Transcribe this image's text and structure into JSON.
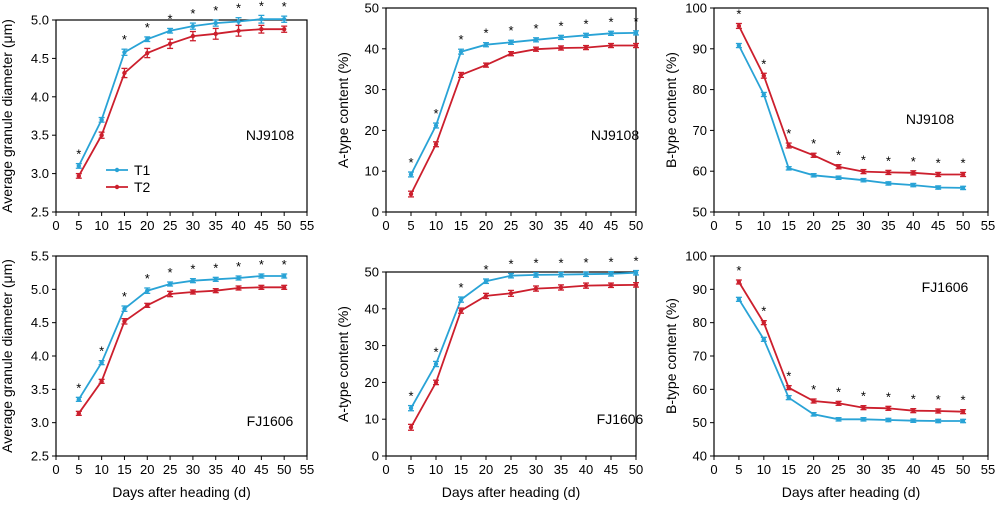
{
  "chart_data": [
    {
      "type": "line",
      "xlabel": "",
      "ylabel": "Average granule diameter (μm)",
      "x": [
        5,
        10,
        15,
        20,
        25,
        30,
        35,
        40,
        45,
        50
      ],
      "xlim": [
        0,
        55
      ],
      "xticks": [
        "0",
        "5",
        "10",
        "15",
        "20",
        "25",
        "30",
        "35",
        "40",
        "45",
        "50",
        "55"
      ],
      "ylim": [
        2.5,
        5.0
      ],
      "yticks": [
        "2.5",
        "3.0",
        "3.5",
        "4.0",
        "4.5",
        "5.0"
      ],
      "annotation": "NJ9108",
      "legend": "left",
      "series": [
        {
          "name": "T1",
          "values": [
            3.1,
            3.7,
            4.58,
            4.75,
            4.86,
            4.92,
            4.96,
            4.98,
            5.01,
            5.01
          ],
          "errors": [
            0.03,
            0.03,
            0.04,
            0.03,
            0.03,
            0.04,
            0.04,
            0.05,
            0.05,
            0.04
          ]
        },
        {
          "name": "T2",
          "values": [
            2.97,
            3.5,
            4.31,
            4.57,
            4.69,
            4.79,
            4.82,
            4.86,
            4.88,
            4.88
          ],
          "errors": [
            0.03,
            0.04,
            0.06,
            0.06,
            0.06,
            0.06,
            0.07,
            0.07,
            0.05,
            0.04
          ]
        }
      ],
      "significant": [
        true,
        false,
        true,
        true,
        true,
        true,
        true,
        true,
        true,
        true
      ]
    },
    {
      "type": "line",
      "xlabel": "",
      "ylabel": "A-type content (%)",
      "x": [
        5,
        10,
        15,
        20,
        25,
        30,
        35,
        40,
        45,
        50
      ],
      "xlim": [
        0,
        50
      ],
      "xticks": [
        "0",
        "5",
        "10",
        "15",
        "20",
        "25",
        "30",
        "35",
        "40",
        "45",
        "50"
      ],
      "ylim": [
        0,
        50
      ],
      "yticks": [
        "0",
        "10",
        "20",
        "30",
        "40",
        "50"
      ],
      "annotation": "NJ9108",
      "series": [
        {
          "name": "T1",
          "values": [
            9.2,
            21.2,
            39.3,
            41.0,
            41.6,
            42.2,
            42.8,
            43.3,
            43.8,
            43.9
          ],
          "errors": [
            0.6,
            0.6,
            0.6,
            0.5,
            0.5,
            0.5,
            0.5,
            0.5,
            0.5,
            0.5
          ]
        },
        {
          "name": "T2",
          "values": [
            4.4,
            16.6,
            33.6,
            36.0,
            38.8,
            39.9,
            40.2,
            40.3,
            40.8,
            40.8
          ],
          "errors": [
            0.7,
            0.6,
            0.6,
            0.5,
            0.5,
            0.5,
            0.5,
            0.5,
            0.5,
            0.5
          ]
        }
      ],
      "significant": [
        true,
        true,
        true,
        true,
        true,
        true,
        true,
        true,
        true,
        true
      ]
    },
    {
      "type": "line",
      "xlabel": "",
      "ylabel": "B-type content (%)",
      "x": [
        5,
        10,
        15,
        20,
        25,
        30,
        35,
        40,
        45,
        50
      ],
      "xlim": [
        0,
        55
      ],
      "xticks": [
        "0",
        "5",
        "10",
        "15",
        "20",
        "25",
        "30",
        "35",
        "40",
        "45",
        "50",
        "55"
      ],
      "ylim": [
        50,
        100
      ],
      "yticks": [
        "50",
        "60",
        "70",
        "80",
        "90",
        "100"
      ],
      "annotation": "NJ9108",
      "series": [
        {
          "name": "T1",
          "values": [
            90.8,
            78.8,
            60.7,
            59.0,
            58.4,
            57.8,
            57.0,
            56.6,
            56.0,
            55.9
          ],
          "errors": [
            0.5,
            0.5,
            0.4,
            0.4,
            0.4,
            0.4,
            0.4,
            0.4,
            0.4,
            0.4
          ]
        },
        {
          "name": "T2",
          "values": [
            95.6,
            83.4,
            66.3,
            63.9,
            61.1,
            59.9,
            59.7,
            59.6,
            59.2,
            59.2
          ],
          "errors": [
            0.6,
            0.6,
            0.6,
            0.5,
            0.5,
            0.5,
            0.5,
            0.5,
            0.5,
            0.5
          ]
        }
      ],
      "significant": [
        true,
        true,
        true,
        true,
        true,
        true,
        true,
        true,
        true,
        true
      ]
    },
    {
      "type": "line",
      "xlabel": "Days after heading (d)",
      "ylabel": "Average granule diameter (μm)",
      "x": [
        5,
        10,
        15,
        20,
        25,
        30,
        35,
        40,
        45,
        50
      ],
      "xlim": [
        0,
        55
      ],
      "xticks": [
        "0",
        "5",
        "10",
        "15",
        "20",
        "25",
        "30",
        "35",
        "40",
        "45",
        "50",
        "55"
      ],
      "ylim": [
        2.5,
        5.5
      ],
      "yticks": [
        "2.5",
        "3.0",
        "3.5",
        "4.0",
        "4.5",
        "5.0",
        "5.5"
      ],
      "annotation": "FJ1606",
      "series": [
        {
          "name": "T1",
          "values": [
            3.35,
            3.9,
            4.71,
            4.98,
            5.08,
            5.13,
            5.15,
            5.17,
            5.2,
            5.2
          ],
          "errors": [
            0.03,
            0.03,
            0.04,
            0.04,
            0.03,
            0.03,
            0.03,
            0.03,
            0.03,
            0.03
          ]
        },
        {
          "name": "T2",
          "values": [
            3.14,
            3.62,
            4.52,
            4.76,
            4.93,
            4.96,
            4.98,
            5.02,
            5.03,
            5.03
          ],
          "errors": [
            0.03,
            0.03,
            0.04,
            0.03,
            0.04,
            0.03,
            0.03,
            0.03,
            0.03,
            0.03
          ]
        }
      ],
      "significant": [
        true,
        true,
        true,
        true,
        true,
        true,
        true,
        true,
        true,
        true
      ]
    },
    {
      "type": "line",
      "xlabel": "Days after heading (d)",
      "ylabel": "A-type content (%)",
      "x": [
        5,
        10,
        15,
        20,
        25,
        30,
        35,
        40,
        45,
        50
      ],
      "xlim": [
        0,
        50
      ],
      "xticks": [
        "0",
        "5",
        "10",
        "15",
        "20",
        "25",
        "30",
        "35",
        "40",
        "45",
        "50"
      ],
      "ylim": [
        0,
        50
      ],
      "yticks": [
        "0",
        "10",
        "20",
        "30",
        "40",
        "50"
      ],
      "annotation": "FJ1606",
      "series": [
        {
          "name": "T1",
          "values": [
            13.0,
            25.0,
            42.5,
            47.5,
            49.0,
            49.2,
            49.3,
            49.4,
            49.5,
            49.8
          ],
          "errors": [
            0.7,
            0.7,
            0.7,
            0.6,
            0.6,
            0.6,
            0.6,
            0.6,
            0.6,
            0.6
          ]
        },
        {
          "name": "T2",
          "values": [
            7.8,
            20.0,
            39.5,
            43.5,
            44.2,
            45.5,
            45.8,
            46.3,
            46.4,
            46.5
          ],
          "errors": [
            0.8,
            0.6,
            0.7,
            0.7,
            0.8,
            0.7,
            0.7,
            0.7,
            0.6,
            0.6
          ]
        }
      ],
      "significant": [
        true,
        true,
        true,
        true,
        true,
        true,
        true,
        true,
        true,
        true
      ]
    },
    {
      "type": "line",
      "xlabel": "Days after heading (d)",
      "ylabel": "B-type content (%)",
      "x": [
        5,
        10,
        15,
        20,
        25,
        30,
        35,
        40,
        45,
        50
      ],
      "xlim": [
        0,
        55
      ],
      "xticks": [
        "0",
        "5",
        "10",
        "15",
        "20",
        "25",
        "30",
        "35",
        "40",
        "45",
        "50",
        "55"
      ],
      "ylim": [
        40,
        100
      ],
      "yticks": [
        "40",
        "50",
        "60",
        "70",
        "80",
        "90",
        "100"
      ],
      "annotation": "FJ1606",
      "series": [
        {
          "name": "T1",
          "values": [
            87.0,
            75.0,
            57.5,
            52.5,
            51.0,
            51.0,
            50.8,
            50.6,
            50.5,
            50.5
          ],
          "errors": [
            0.6,
            0.6,
            0.6,
            0.5,
            0.5,
            0.5,
            0.5,
            0.5,
            0.5,
            0.5
          ]
        },
        {
          "name": "T2",
          "values": [
            92.2,
            80.0,
            60.5,
            56.5,
            55.8,
            54.5,
            54.3,
            53.6,
            53.5,
            53.3
          ],
          "errors": [
            0.6,
            0.6,
            0.6,
            0.6,
            0.6,
            0.6,
            0.6,
            0.6,
            0.6,
            0.6
          ]
        }
      ],
      "significant": [
        true,
        true,
        true,
        true,
        true,
        true,
        true,
        true,
        true,
        true
      ]
    }
  ],
  "colors": {
    "T1": "#29a3d6",
    "T2": "#cc1f2d"
  }
}
